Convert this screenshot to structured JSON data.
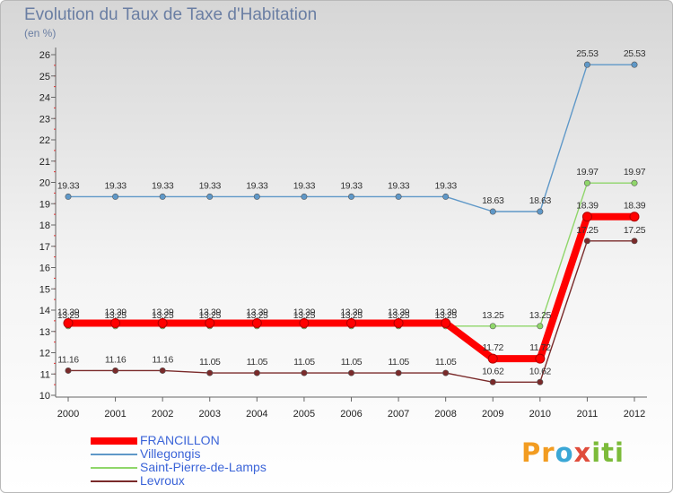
{
  "title": "Evolution du Taux de Taxe d'Habitation",
  "unit": "(en %)",
  "logo": {
    "p1": "Pr",
    "p2": "o",
    "p3": "x",
    "p4": "iti"
  },
  "chart_data": {
    "type": "line",
    "title": "Evolution du Taux de Taxe d'Habitation",
    "ylabel": "(en %)",
    "xlabel": "",
    "x": [
      "2000",
      "2001",
      "2002",
      "2003",
      "2004",
      "2005",
      "2006",
      "2007",
      "2008",
      "2009",
      "2010",
      "2011",
      "2012"
    ],
    "ylim": [
      10,
      26
    ],
    "yticks": [
      10,
      11,
      12,
      13,
      14,
      15,
      16,
      17,
      18,
      19,
      20,
      21,
      22,
      23,
      24,
      25,
      26
    ],
    "series": [
      {
        "name": "FRANCILLON",
        "color": "#ff0000",
        "values": [
          13.39,
          13.39,
          13.39,
          13.39,
          13.39,
          13.39,
          13.39,
          13.39,
          13.39,
          11.72,
          11.72,
          18.39,
          18.39
        ],
        "labels": [
          "13.39",
          "13.39",
          "13.39",
          "13.39",
          "13.39",
          "13.39",
          "13.39",
          "13.39",
          "13.39",
          "11.72",
          "11.72",
          "18.39",
          "18.39"
        ]
      },
      {
        "name": "Villegongis",
        "color": "#5f98c8",
        "values": [
          19.33,
          19.33,
          19.33,
          19.33,
          19.33,
          19.33,
          19.33,
          19.33,
          19.33,
          18.63,
          18.63,
          25.53,
          25.53
        ],
        "labels": [
          "19.33",
          "19.33",
          "19.33",
          "19.33",
          "19.33",
          "19.33",
          "19.33",
          "19.33",
          "19.33",
          "18.63",
          "18.63",
          "25.53",
          "25.53"
        ]
      },
      {
        "name": "Saint-Pierre-de-Lamps",
        "color": "#8fd66a",
        "values": [
          13.25,
          13.25,
          13.25,
          13.25,
          13.25,
          13.25,
          13.25,
          13.25,
          13.25,
          13.25,
          13.25,
          19.97,
          19.97
        ],
        "labels": [
          "13.25",
          "13.25",
          "13.25",
          "13.25",
          "13.25",
          "13.25",
          "13.25",
          "13.25",
          "13.25",
          "13.25",
          "13.25",
          "19.97",
          "19.97"
        ]
      },
      {
        "name": "Levroux",
        "color": "#7a2a2a",
        "values": [
          11.16,
          11.16,
          11.16,
          11.05,
          11.05,
          11.05,
          11.05,
          11.05,
          11.05,
          10.62,
          10.62,
          17.25,
          17.25
        ],
        "labels": [
          "11.16",
          "11.16",
          "11.16",
          "11.05",
          "11.05",
          "11.05",
          "11.05",
          "11.05",
          "11.05",
          "10.62",
          "10.62",
          "17.25",
          "17.25"
        ]
      }
    ],
    "legend_position": "bottom-left",
    "grid": false
  }
}
